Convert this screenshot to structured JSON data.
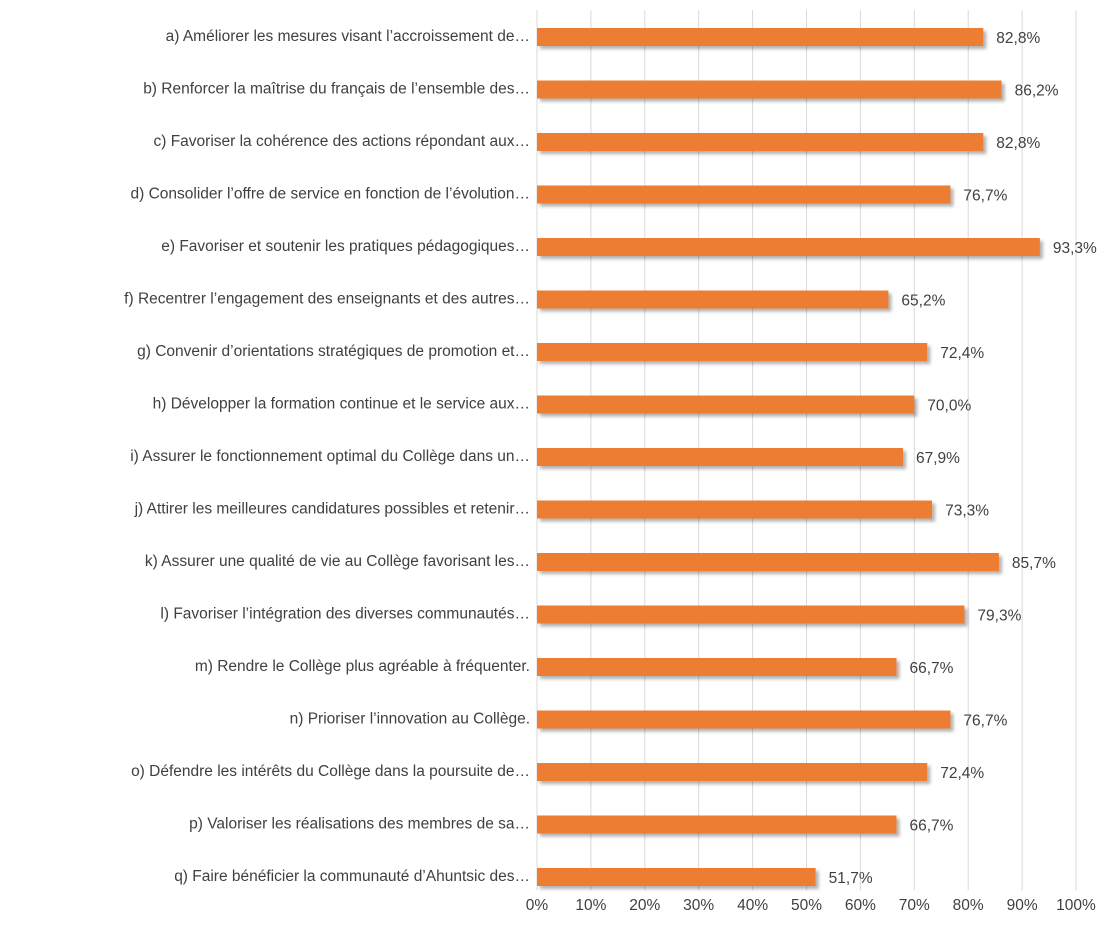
{
  "chart_data": {
    "type": "bar",
    "orientation": "horizontal",
    "categories": [
      "a) Améliorer les mesures visant l’accroissement de…",
      "b) Renforcer la maîtrise du français de l’ensemble des…",
      "c) Favoriser la cohérence des actions répondant aux…",
      "d) Consolider l’offre de service en fonction de l’évolution…",
      "e) Favoriser et soutenir les pratiques pédagogiques…",
      "f) Recentrer l’engagement des enseignants et des autres…",
      "g) Convenir d’orientations stratégiques de promotion et…",
      "h) Développer la formation continue et le service aux…",
      "i) Assurer le fonctionnement optimal du Collège dans un…",
      "j) Attirer les meilleures candidatures possibles et retenir…",
      "k) Assurer une qualité de vie au Collège favorisant les…",
      "l) Favoriser l’intégration des diverses communautés…",
      "m) Rendre le Collège plus agréable à fréquenter.",
      "n) Prioriser l’innovation au Collège.",
      "o) Défendre les intérêts du Collège dans la poursuite de…",
      "p) Valoriser les réalisations des membres de sa…",
      "q) Faire bénéficier la communauté d’Ahuntsic des…"
    ],
    "values": [
      82.8,
      86.2,
      82.8,
      76.7,
      93.3,
      65.2,
      72.4,
      70.0,
      67.9,
      73.3,
      85.7,
      79.3,
      66.7,
      76.7,
      72.4,
      66.7,
      51.7
    ],
    "value_labels": [
      "82,8%",
      "86,2%",
      "82,8%",
      "76,7%",
      "93,3%",
      "65,2%",
      "72,4%",
      "70,0%",
      "67,9%",
      "73,3%",
      "85,7%",
      "79,3%",
      "66,7%",
      "76,7%",
      "72,4%",
      "66,7%",
      "51,7%"
    ],
    "color": "#ed7d31",
    "xlim": [
      0,
      100
    ],
    "xticks": [
      {
        "value": 0,
        "label": "0%"
      },
      {
        "value": 10,
        "label": "10%"
      },
      {
        "value": 20,
        "label": "20%"
      },
      {
        "value": 30,
        "label": "30%"
      },
      {
        "value": 40,
        "label": "40%"
      },
      {
        "value": 50,
        "label": "50%"
      },
      {
        "value": 60,
        "label": "60%"
      },
      {
        "value": 70,
        "label": "70%"
      },
      {
        "value": 80,
        "label": "80%"
      },
      {
        "value": 90,
        "label": "90%"
      },
      {
        "value": 100,
        "label": "100%"
      }
    ],
    "grid": true
  }
}
